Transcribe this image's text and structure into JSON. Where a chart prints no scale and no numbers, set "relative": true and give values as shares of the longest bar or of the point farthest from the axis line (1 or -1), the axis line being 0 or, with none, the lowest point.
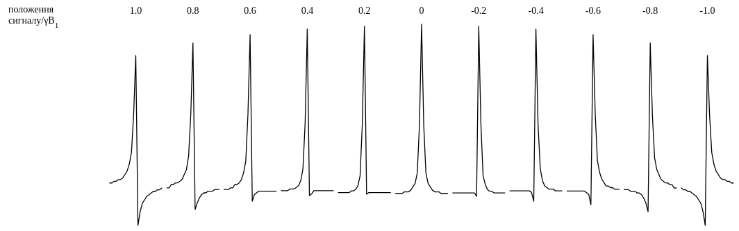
{
  "chart_data": [
    {
      "type": "other",
      "title": "положення сигналу/γB$_{1}$"
    },
    {
      "type": "line",
      "title": "1.0",
      "relative": true,
      "categories": [
        null,
        null,
        null,
        null,
        null,
        null,
        null,
        null,
        null,
        null,
        null,
        null,
        null,
        null,
        null,
        null,
        null,
        null,
        null,
        null,
        null,
        null,
        null,
        null,
        null
      ],
      "series": [
        {
          "color": "#000000",
          "values": [
            0.25,
            0.25,
            0.26,
            0.26,
            0.27,
            0.27,
            0.28,
            0.3,
            0.32,
            0.36,
            0.43,
            0.65,
            1,
            0,
            0.08,
            0.13,
            0.15,
            0.17,
            0.18,
            0.19,
            0.2,
            0.2,
            0.21,
            0.21,
            0.22
          ]
        }
      ]
    },
    {
      "type": "line",
      "title": "0.8",
      "relative": true,
      "categories": [
        null,
        null,
        null,
        null,
        null,
        null,
        null,
        null,
        null,
        null,
        null,
        null,
        null,
        null,
        null,
        null,
        null,
        null,
        null,
        null,
        null,
        null,
        null,
        null,
        null
      ],
      "series": [
        {
          "color": "#000000",
          "values": [
            0.13,
            0.13,
            0.15,
            0.15,
            0.16,
            0.16,
            0.17,
            0.18,
            0.21,
            0.24,
            0.32,
            0.57,
            1,
            0,
            0.04,
            0.07,
            0.09,
            0.1,
            0.1,
            0.11,
            0.11,
            0.11,
            0.12,
            0.12,
            0.12
          ]
        }
      ]
    },
    {
      "type": "line",
      "title": "0.6",
      "relative": true,
      "categories": [
        null,
        null,
        null,
        null,
        null,
        null,
        null,
        null,
        null,
        null,
        null,
        null,
        null,
        null,
        null,
        null,
        null,
        null,
        null,
        null,
        null,
        null,
        null,
        null,
        null
      ],
      "series": [
        {
          "color": "#000000",
          "values": [
            0.07,
            0.07,
            0.07,
            0.08,
            0.08,
            0.1,
            0.1,
            0.11,
            0.13,
            0.17,
            0.24,
            0.52,
            1,
            0,
            0.04,
            0.05,
            0.06,
            0.06,
            0.06,
            0.06,
            0.06,
            0.06,
            0.06,
            0.06,
            0.06
          ]
        }
      ]
    },
    {
      "type": "line",
      "title": "0.4",
      "relative": true,
      "categories": [
        null,
        null,
        null,
        null,
        null,
        null,
        null,
        null,
        null,
        null,
        null,
        null,
        null,
        null,
        null,
        null,
        null,
        null,
        null,
        null,
        null,
        null,
        null,
        null,
        null
      ],
      "series": [
        {
          "color": "#000000",
          "values": [
            0.03,
            0.03,
            0.03,
            0.03,
            0.04,
            0.04,
            0.04,
            0.05,
            0.06,
            0.09,
            0.16,
            0.43,
            1,
            0,
            0.01,
            0.03,
            0.03,
            0.03,
            0.03,
            0.03,
            0.03,
            0.03,
            0.03,
            0.03,
            0.03
          ]
        }
      ]
    },
    {
      "type": "line",
      "title": "0.2",
      "relative": true,
      "categories": [
        null,
        null,
        null,
        null,
        null,
        null,
        null,
        null,
        null,
        null,
        null,
        null,
        null,
        null,
        null,
        null,
        null,
        null,
        null,
        null,
        null,
        null,
        null,
        null,
        null
      ],
      "series": [
        {
          "color": "#000000",
          "values": [
            0.01,
            0.01,
            0.01,
            0.01,
            0.01,
            0.01,
            0.02,
            0.02,
            0.03,
            0.05,
            0.11,
            0.41,
            1,
            0,
            0.01,
            0.01,
            0.01,
            0.01,
            0.01,
            0.01,
            0.01,
            0.01,
            0.01,
            0.01,
            0.01
          ]
        }
      ]
    },
    {
      "type": "line",
      "title": "0",
      "relative": true,
      "categories": [
        null,
        null,
        null,
        null,
        null,
        null,
        null,
        null,
        null,
        null,
        null,
        null,
        null,
        null,
        null,
        null,
        null,
        null,
        null,
        null,
        null,
        null,
        null,
        null,
        null
      ],
      "series": [
        {
          "color": "#000000",
          "values": [
            0,
            0,
            0,
            0,
            0.01,
            0.01,
            0.01,
            0.02,
            0.04,
            0.06,
            0.12,
            0.4,
            1,
            0.4,
            0.12,
            0.06,
            0.04,
            0.02,
            0.01,
            0.01,
            0.01,
            0,
            0,
            0,
            0
          ]
        }
      ]
    },
    {
      "type": "line",
      "title": "-0.2",
      "relative": true,
      "categories": [
        null,
        null,
        null,
        null,
        null,
        null,
        null,
        null,
        null,
        null,
        null,
        null,
        null,
        null,
        null,
        null,
        null,
        null,
        null,
        null,
        null,
        null,
        null,
        null,
        null
      ],
      "series": [
        {
          "color": "#000000",
          "values": [
            0.02,
            0.02,
            0.02,
            0.02,
            0.02,
            0.02,
            0.02,
            0.02,
            0.02,
            0.02,
            0.02,
            0,
            1,
            0.42,
            0.12,
            0.07,
            0.04,
            0.03,
            0.03,
            0.02,
            0.02,
            0.02,
            0.02,
            0.02,
            0.02
          ]
        }
      ]
    },
    {
      "type": "line",
      "title": "-0.4",
      "relative": true,
      "categories": [
        null,
        null,
        null,
        null,
        null,
        null,
        null,
        null,
        null,
        null,
        null,
        null,
        null,
        null,
        null,
        null,
        null,
        null,
        null,
        null,
        null,
        null,
        null,
        null,
        null
      ],
      "series": [
        {
          "color": "#000000",
          "values": [
            0.06,
            0.06,
            0.06,
            0.06,
            0.06,
            0.06,
            0.06,
            0.06,
            0.06,
            0.06,
            0.05,
            0,
            1,
            0.44,
            0.19,
            0.12,
            0.09,
            0.08,
            0.07,
            0.07,
            0.07,
            0.06,
            0.06,
            0.06,
            0.06
          ]
        }
      ]
    },
    {
      "type": "line",
      "title": "-0.6",
      "relative": true,
      "categories": [
        null,
        null,
        null,
        null,
        null,
        null,
        null,
        null,
        null,
        null,
        null,
        null,
        null,
        null,
        null,
        null,
        null,
        null,
        null,
        null,
        null,
        null,
        null,
        null,
        null
      ],
      "series": [
        {
          "color": "#000000",
          "values": [
            0.08,
            0.08,
            0.08,
            0.08,
            0.08,
            0.08,
            0.08,
            0.08,
            0.08,
            0.07,
            0.06,
            0,
            1,
            0.53,
            0.26,
            0.19,
            0.15,
            0.13,
            0.11,
            0.11,
            0.1,
            0.1,
            0.09,
            0.09,
            0.09
          ]
        }
      ]
    },
    {
      "type": "line",
      "title": "-0.8",
      "relative": true,
      "categories": [
        null,
        null,
        null,
        null,
        null,
        null,
        null,
        null,
        null,
        null,
        null,
        null,
        null,
        null,
        null,
        null,
        null,
        null,
        null,
        null,
        null,
        null,
        null,
        null,
        null
      ],
      "series": [
        {
          "color": "#000000",
          "values": [
            0.13,
            0.13,
            0.13,
            0.12,
            0.12,
            0.12,
            0.11,
            0.11,
            0.1,
            0.08,
            0.05,
            0,
            1,
            0.57,
            0.32,
            0.25,
            0.22,
            0.19,
            0.18,
            0.17,
            0.17,
            0.16,
            0.16,
            0.14,
            0.14
          ]
        }
      ]
    },
    {
      "type": "line",
      "title": "-1.0",
      "relative": true,
      "categories": [
        null,
        null,
        null,
        null,
        null,
        null,
        null,
        null,
        null,
        null,
        null,
        null,
        null,
        null,
        null,
        null,
        null,
        null,
        null,
        null,
        null,
        null,
        null,
        null,
        null
      ],
      "series": [
        {
          "color": "#000000",
          "values": [
            0.22,
            0.21,
            0.21,
            0.2,
            0.2,
            0.19,
            0.18,
            0.17,
            0.15,
            0.13,
            0.08,
            0,
            1,
            0.65,
            0.43,
            0.36,
            0.32,
            0.3,
            0.28,
            0.27,
            0.27,
            0.26,
            0.26,
            0.25,
            0.25
          ]
        }
      ]
    }
  ]
}
